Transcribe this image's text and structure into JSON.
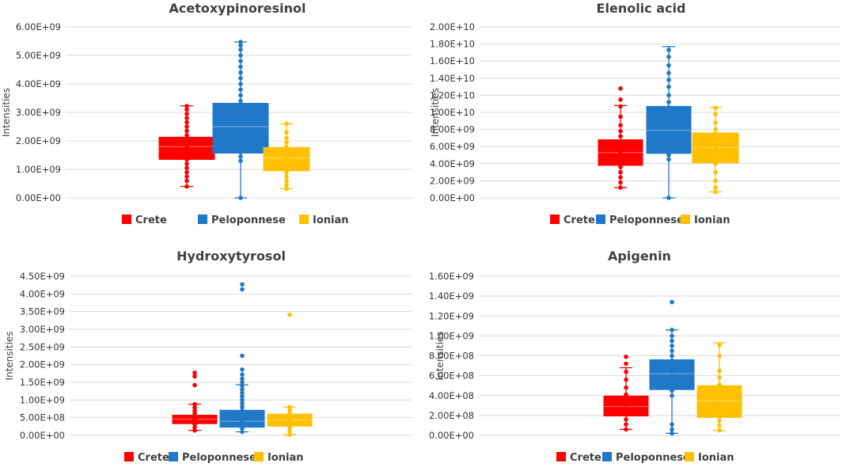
{
  "chart_data": [
    {
      "type": "box",
      "title": "Acetoxypinoresinol",
      "ylabel": "Intensities",
      "ylim": [
        0,
        6000000000.0
      ],
      "ytick_step": 1000000000.0,
      "yticks": [
        "0.00E+00",
        "1.00E+09",
        "2.00E+09",
        "3.00E+09",
        "4.00E+09",
        "5.00E+09",
        "6.00E+09"
      ],
      "legend": [
        "Crete",
        "Peloponnese",
        "Ionian"
      ],
      "series": [
        {
          "name": "Crete",
          "color": "#ff0000",
          "whisker_low": 400000000.0,
          "q1": 1350000000.0,
          "median": 1800000000.0,
          "q3": 2130000000.0,
          "whisker_high": 3230000000.0,
          "points": [
            400000000.0,
            600000000.0,
            750000000.0,
            900000000.0,
            1050000000.0,
            1200000000.0,
            1350000000.0,
            1450000000.0,
            1550000000.0,
            1650000000.0,
            1750000000.0,
            1850000000.0,
            1950000000.0,
            2050000000.0,
            2200000000.0,
            2350000000.0,
            2500000000.0,
            2650000000.0,
            2800000000.0,
            2950000000.0,
            3100000000.0,
            3220000000.0
          ]
        },
        {
          "name": "Peloponnese",
          "color": "#1f78c8",
          "whisker_low": 0.0,
          "q1": 1570000000.0,
          "median": 2500000000.0,
          "q3": 3320000000.0,
          "whisker_high": 5470000000.0,
          "points": [
            0.0,
            1300000000.0,
            1450000000.0,
            1600000000.0,
            1800000000.0,
            2000000000.0,
            2200000000.0,
            2400000000.0,
            2600000000.0,
            2800000000.0,
            3000000000.0,
            3200000000.0,
            3400000000.0,
            3600000000.0,
            3800000000.0,
            4000000000.0,
            4200000000.0,
            4400000000.0,
            4600000000.0,
            4800000000.0,
            5000000000.0,
            5200000000.0,
            5350000000.0,
            5470000000.0
          ]
        },
        {
          "name": "Ionian",
          "color": "#ffc000",
          "whisker_low": 320000000.0,
          "q1": 950000000.0,
          "median": 1400000000.0,
          "q3": 1770000000.0,
          "whisker_high": 2600000000.0,
          "points": [
            320000000.0,
            450000000.0,
            600000000.0,
            750000000.0,
            900000000.0,
            1050000000.0,
            1200000000.0,
            1350000000.0,
            1500000000.0,
            1650000000.0,
            1800000000.0,
            1950000000.0,
            2100000000.0,
            2300000000.0,
            2600000000.0
          ]
        }
      ]
    },
    {
      "type": "box",
      "title": "Elenolic acid",
      "ylabel": "Intensities",
      "ylim": [
        0,
        20000000000.0
      ],
      "ytick_step": 2000000000.0,
      "yticks": [
        "0.00E+00",
        "2.00E+09",
        "4.00E+09",
        "6.00E+09",
        "8.00E+09",
        "1.00E+10",
        "1.20E+10",
        "1.40E+10",
        "1.60E+10",
        "1.80E+10",
        "2.00E+10"
      ],
      "legend": [
        "Crete",
        "Peloponnese",
        "Ionian"
      ],
      "series": [
        {
          "name": "Crete",
          "color": "#ff0000",
          "whisker_low": 1200000000.0,
          "q1": 3800000000.0,
          "median": 5300000000.0,
          "q3": 6800000000.0,
          "whisker_high": 10800000000.0,
          "points": [
            1200000000.0,
            1800000000.0,
            2400000000.0,
            3000000000.0,
            3600000000.0,
            4200000000.0,
            4800000000.0,
            5400000000.0,
            6000000000.0,
            6600000000.0,
            7200000000.0,
            7800000000.0,
            8500000000.0,
            9500000000.0,
            10700000000.0,
            11500000000.0,
            12800000000.0
          ]
        },
        {
          "name": "Peloponnese",
          "color": "#1f78c8",
          "whisker_low": 0.0,
          "q1": 5200000000.0,
          "median": 7900000000.0,
          "q3": 10700000000.0,
          "whisker_high": 17700000000.0,
          "points": [
            0.0,
            4500000000.0,
            5000000000.0,
            5800000000.0,
            6600000000.0,
            7400000000.0,
            8200000000.0,
            9000000000.0,
            9800000000.0,
            10600000000.0,
            11200000000.0,
            12000000000.0,
            13000000000.0,
            13800000000.0,
            14600000000.0,
            15500000000.0,
            16500000000.0,
            17300000000.0
          ]
        },
        {
          "name": "Ionian",
          "color": "#ffc000",
          "whisker_low": 700000000.0,
          "q1": 4100000000.0,
          "median": 5900000000.0,
          "q3": 7600000000.0,
          "whisker_high": 10600000000.0,
          "points": [
            700000000.0,
            1200000000.0,
            2000000000.0,
            3000000000.0,
            4000000000.0,
            5000000000.0,
            6000000000.0,
            7000000000.0,
            8000000000.0,
            8800000000.0,
            9800000000.0,
            10500000000.0
          ]
        }
      ]
    },
    {
      "type": "box",
      "title": "Hydroxytyrosol",
      "ylabel": "Intensities",
      "ylim": [
        0,
        4500000000.0
      ],
      "ytick_step": 500000000.0,
      "yticks": [
        "0.00E+00",
        "5.00E+08",
        "1.00E+09",
        "1.50E+09",
        "2.00E+09",
        "2.50E+09",
        "3.00E+09",
        "3.50E+09",
        "4.00E+09",
        "4.50E+09"
      ],
      "legend": [
        "Crete",
        "Peloponnese",
        "Ionian"
      ],
      "series": [
        {
          "name": "Crete",
          "color": "#ff0000",
          "whisker_low": 140000000.0,
          "q1": 330000000.0,
          "median": 460000000.0,
          "q3": 570000000.0,
          "whisker_high": 880000000.0,
          "points": [
            140000000.0,
            220000000.0,
            300000000.0,
            380000000.0,
            460000000.0,
            540000000.0,
            620000000.0,
            700000000.0,
            780000000.0,
            880000000.0,
            1420000000.0,
            1670000000.0,
            1770000000.0
          ]
        },
        {
          "name": "Peloponnese",
          "color": "#1f78c8",
          "whisker_low": 100000000.0,
          "q1": 230000000.0,
          "median": 400000000.0,
          "q3": 710000000.0,
          "whisker_high": 1430000000.0,
          "points": [
            100000000.0,
            200000000.0,
            300000000.0,
            400000000.0,
            500000000.0,
            600000000.0,
            700000000.0,
            800000000.0,
            900000000.0,
            1000000000.0,
            1100000000.0,
            1200000000.0,
            1300000000.0,
            1400000000.0,
            1500000000.0,
            1600000000.0,
            1720000000.0,
            1860000000.0,
            2250000000.0,
            4130000000.0,
            4270000000.0
          ]
        },
        {
          "name": "Ionian",
          "color": "#ffc000",
          "whisker_low": 20000000.0,
          "q1": 260000000.0,
          "median": 430000000.0,
          "q3": 600000000.0,
          "whisker_high": 800000000.0,
          "points": [
            20000000.0,
            120000000.0,
            220000000.0,
            320000000.0,
            420000000.0,
            520000000.0,
            620000000.0,
            720000000.0,
            800000000.0,
            3410000000.0
          ]
        }
      ]
    },
    {
      "type": "box",
      "title": "Apigenin",
      "ylabel": "Intensities",
      "ylim": [
        0,
        1600000000.0
      ],
      "ytick_step": 200000000.0,
      "yticks": [
        "0.00E+00",
        "2.00E+08",
        "4.00E+08",
        "6.00E+08",
        "8.00E+08",
        "1.00E+09",
        "1.20E+09",
        "1.40E+09",
        "1.60E+09"
      ],
      "legend": [
        "Crete",
        "Peloponnese",
        "Ionian"
      ],
      "series": [
        {
          "name": "Crete",
          "color": "#ff0000",
          "whisker_low": 60000000.0,
          "q1": 195000000.0,
          "median": 290000000.0,
          "q3": 395000000.0,
          "whisker_high": 680000000.0,
          "points": [
            60000000.0,
            110000000.0,
            160000000.0,
            210000000.0,
            260000000.0,
            310000000.0,
            360000000.0,
            410000000.0,
            480000000.0,
            560000000.0,
            640000000.0,
            720000000.0,
            790000000.0
          ]
        },
        {
          "name": "Peloponnese",
          "color": "#1f78c8",
          "whisker_low": 20000000.0,
          "q1": 460000000.0,
          "median": 620000000.0,
          "q3": 760000000.0,
          "whisker_high": 1060000000.0,
          "points": [
            20000000.0,
            60000000.0,
            110000000.0,
            400000000.0,
            450000000.0,
            500000000.0,
            550000000.0,
            600000000.0,
            650000000.0,
            700000000.0,
            750000000.0,
            800000000.0,
            850000000.0,
            900000000.0,
            950000000.0,
            1000000000.0,
            1060000000.0,
            1340000000.0
          ]
        },
        {
          "name": "Ionian",
          "color": "#ffc000",
          "whisker_low": 50000000.0,
          "q1": 180000000.0,
          "median": 350000000.0,
          "q3": 500000000.0,
          "whisker_high": 930000000.0,
          "points": [
            50000000.0,
            100000000.0,
            150000000.0,
            210000000.0,
            270000000.0,
            330000000.0,
            390000000.0,
            450000000.0,
            510000000.0,
            580000000.0,
            650000000.0,
            800000000.0,
            910000000.0
          ]
        }
      ]
    }
  ]
}
